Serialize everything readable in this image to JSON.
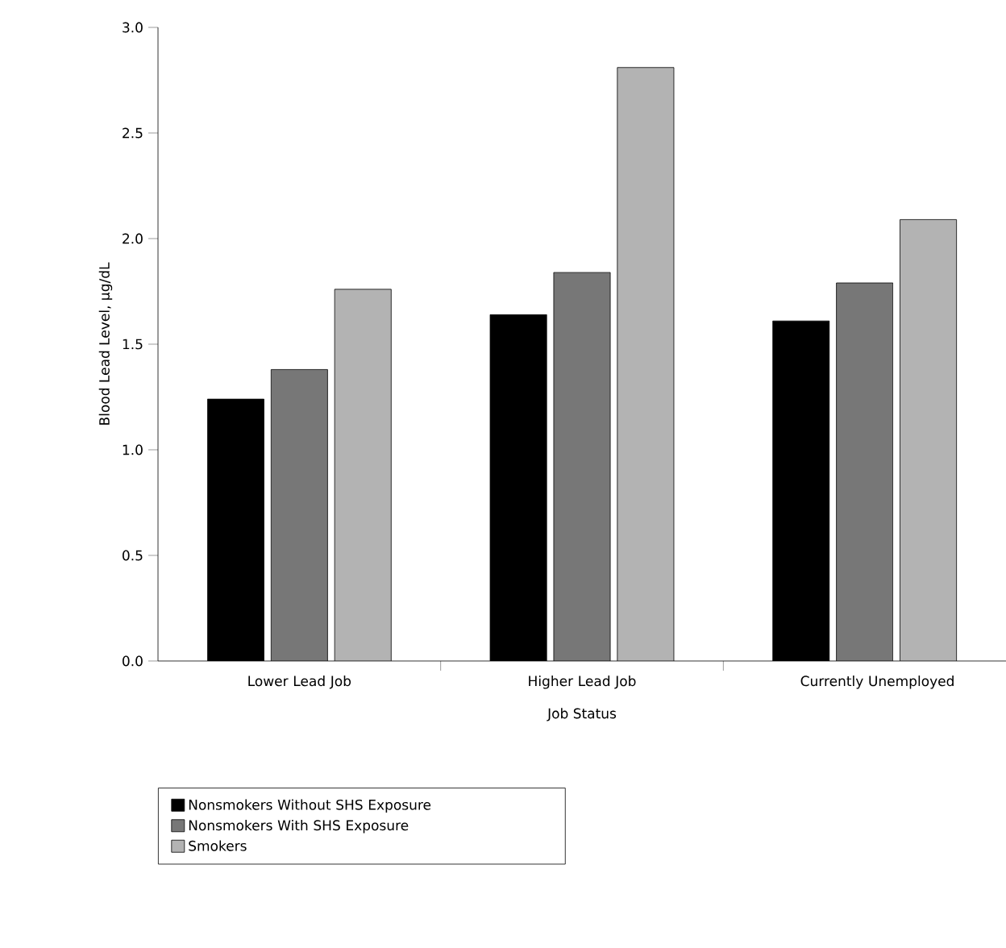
{
  "chart_data": {
    "type": "bar",
    "xlabel": "Job Status",
    "ylabel": "Blood Lead Level, µg/dL",
    "categories": [
      "Lower Lead Job",
      "Higher Lead Job",
      "Currently Unemployed"
    ],
    "series": [
      {
        "name": "Nonsmokers Without SHS Exposure",
        "color": "#000000",
        "values": [
          1.24,
          1.64,
          1.61
        ]
      },
      {
        "name": "Nonsmokers With SHS Exposure",
        "color": "#777777",
        "values": [
          1.38,
          1.84,
          1.79
        ]
      },
      {
        "name": "Smokers",
        "color": "#b3b3b3",
        "values": [
          1.76,
          2.81,
          2.09
        ]
      }
    ],
    "ylim": [
      0,
      3
    ],
    "yticks": [
      {
        "value": 0,
        "label": "0.0"
      },
      0.5,
      {
        "value": 1,
        "label": "1.0"
      },
      1.5,
      {
        "value": 2,
        "label": "2.0"
      },
      2.5,
      {
        "value": 3,
        "label": "3.0"
      }
    ],
    "grid": false,
    "legend": "bottom left"
  }
}
